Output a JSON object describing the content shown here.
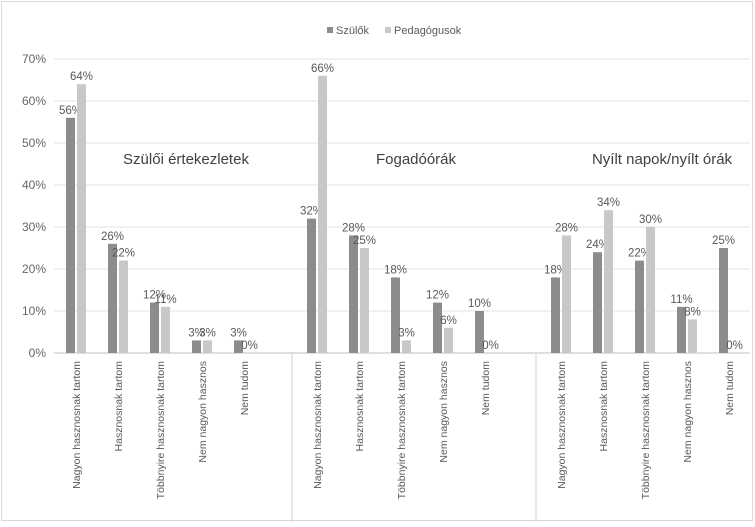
{
  "chart_data": {
    "type": "bar",
    "ylim": [
      0,
      70
    ],
    "yticks": [
      "0%",
      "10%",
      "20%",
      "30%",
      "40%",
      "50%",
      "60%",
      "70%"
    ],
    "legend_position": "top-center",
    "colors": {
      "Szülők": "#8c8c8c",
      "Pedagógusok": "#c8c8c8"
    },
    "series_names": [
      "Szülők",
      "Pedagógusok"
    ],
    "groups": [
      {
        "title": "Szülői értekezletek",
        "categories": [
          "Nagyon hasznosnak tartom",
          "Hasznosnak tartom",
          "Többnyire hasznosnak tartom",
          "Nem nagyon hasznos",
          "Nem tudom"
        ],
        "series": [
          {
            "name": "Szülők",
            "values": [
              56,
              26,
              12,
              3,
              3
            ]
          },
          {
            "name": "Pedagógusok",
            "values": [
              64,
              22,
              11,
              3,
              0
            ]
          }
        ]
      },
      {
        "title": "Fogadóórák",
        "categories": [
          "Nagyon hasznosnak tartom",
          "Hasznosnak tartom",
          "Többnyire hasznosnak tartom",
          "Nem nagyon hasznos",
          "Nem tudom"
        ],
        "series": [
          {
            "name": "Szülők",
            "values": [
              32,
              28,
              18,
              12,
              10
            ]
          },
          {
            "name": "Pedagógusok",
            "values": [
              66,
              25,
              3,
              6,
              0
            ]
          }
        ]
      },
      {
        "title": "Nyílt napok/nyílt órák",
        "categories": [
          "Nagyon hasznosnak tartom",
          "Hasznosnak tartom",
          "Többnyire hasznosnak tartom",
          "Nem nagyon hasznos",
          "Nem tudom"
        ],
        "series": [
          {
            "name": "Szülők",
            "values": [
              18,
              24,
              22,
              11,
              25
            ]
          },
          {
            "name": "Pedagógusok",
            "values": [
              28,
              34,
              30,
              8,
              0
            ]
          }
        ]
      }
    ]
  }
}
